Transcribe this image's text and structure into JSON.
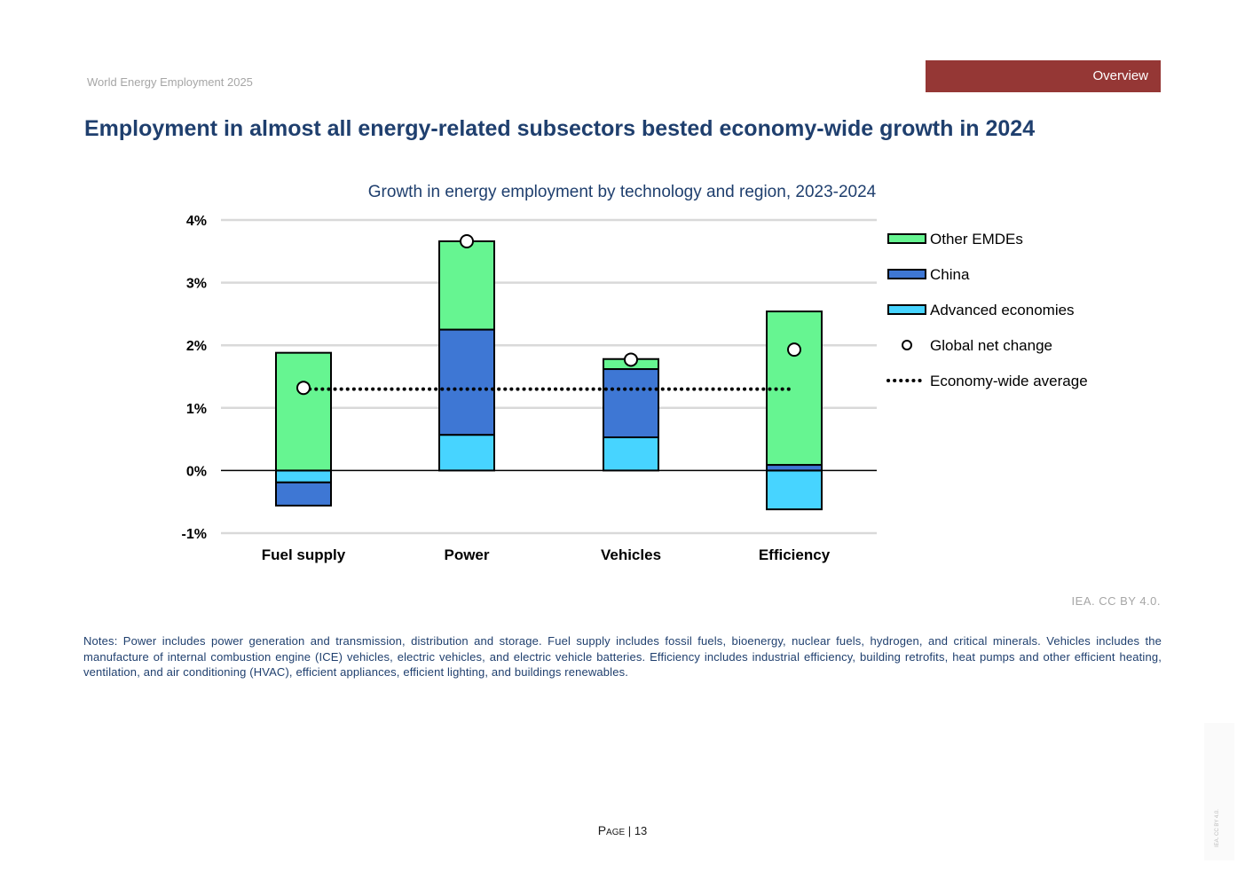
{
  "header": {
    "report_title": "World Energy Employment 2025",
    "section_tag": "Overview"
  },
  "page_title": "Employment in almost all energy-related subsectors bested economy-wide growth in 2024",
  "chart_data": {
    "type": "bar",
    "stacked": true,
    "title": "Growth in energy employment by technology and region, 2023-2024",
    "categories": [
      "Fuel supply",
      "Power",
      "Vehicles",
      "Efficiency"
    ],
    "series": [
      {
        "name": "Advanced economies",
        "color": "#47d4ff",
        "values": [
          -0.19,
          0.57,
          0.53,
          -0.62
        ]
      },
      {
        "name": "China",
        "color": "#3e77d4",
        "values": [
          -0.37,
          1.68,
          1.09,
          0.09
        ]
      },
      {
        "name": "Other EMDEs",
        "color": "#66f591",
        "values": [
          1.88,
          1.41,
          0.16,
          2.45
        ]
      }
    ],
    "global_net_change": {
      "name": "Global net change",
      "values": [
        1.32,
        3.66,
        1.77,
        1.93
      ]
    },
    "economy_wide_average": {
      "name": "Economy-wide average",
      "value": 1.3
    },
    "legend": [
      "Other EMDEs",
      "China",
      "Advanced economies",
      "Global net change",
      "Economy-wide average"
    ],
    "legend_position": "right",
    "y_ticks": [
      "4%",
      "3%",
      "2%",
      "1%",
      "0%",
      "-1%"
    ],
    "ylim": [
      -1,
      4
    ],
    "grid": true,
    "xlabel": "",
    "ylabel": ""
  },
  "credit": "IEA. CC BY 4.0.",
  "notes": "Notes: Power includes power generation and transmission, distribution and storage. Fuel supply includes fossil fuels, bioenergy, nuclear fuels, hydrogen, and critical minerals. Vehicles includes the manufacture of internal combustion engine (ICE) vehicles, electric vehicles, and electric vehicle batteries. Efficiency includes industrial efficiency, building retrofits, heat pumps and other efficient heating, ventilation, and air conditioning (HVAC), efficient appliances, efficient lighting, and buildings renewables.",
  "footer": {
    "page_label": "Page",
    "separator": "|",
    "page_number": "13",
    "side_mark": "IEA. CC BY 4.0."
  }
}
